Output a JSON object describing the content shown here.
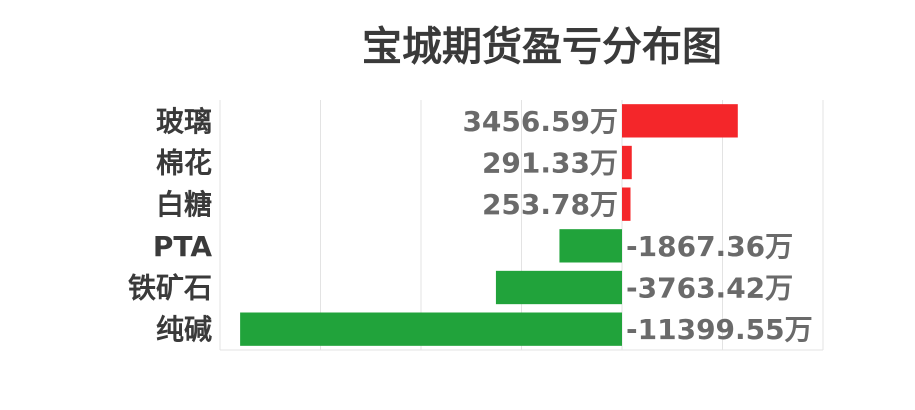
{
  "chart_data": {
    "type": "bar",
    "orientation": "horizontal",
    "title": "宝城期货盈亏分布图",
    "unit_suffix": "万",
    "categories": [
      "玻璃",
      "棉花",
      "白糖",
      "PTA",
      "铁矿石",
      "纯碱"
    ],
    "values": [
      3456.59,
      291.33,
      253.78,
      -1867.36,
      -3763.42,
      -11399.55
    ],
    "value_labels": [
      "3456.59万",
      "291.33万",
      "253.78万",
      "-1867.36万",
      "-3763.42万",
      "-11399.55万"
    ],
    "xlim": [
      -12000,
      6000
    ],
    "grid": true,
    "legend": "none",
    "colors": {
      "positive": "#f4262a",
      "negative": "#21a33b",
      "grid": "#e3e3e3",
      "text": "#3a3a3a",
      "value_text": "#6a6a6a"
    }
  }
}
